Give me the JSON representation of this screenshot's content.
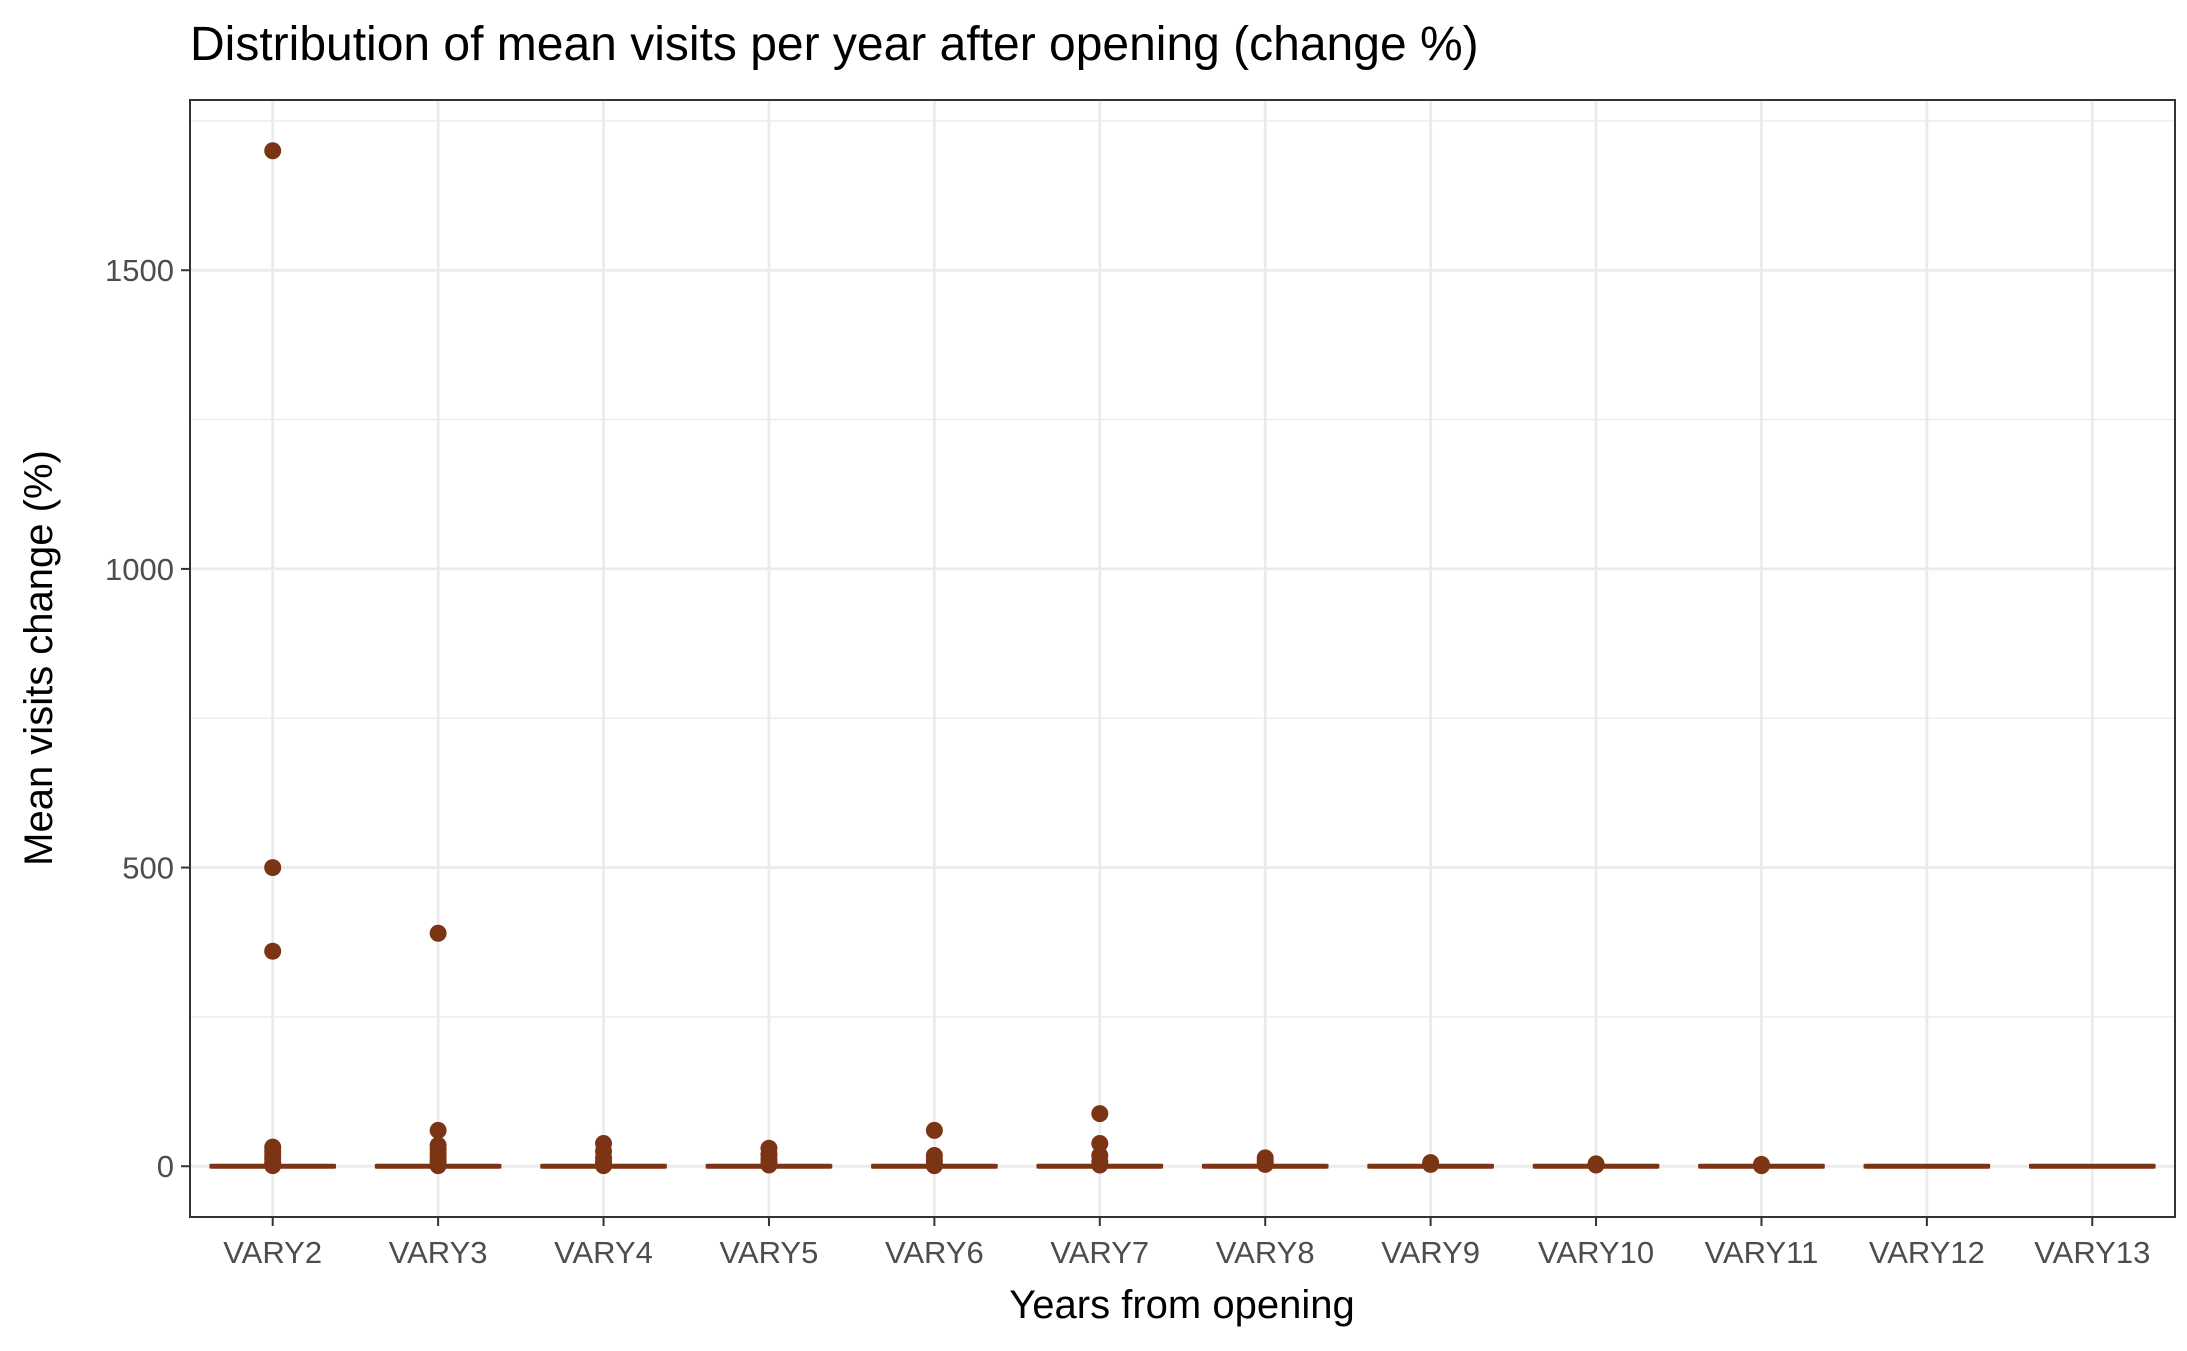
{
  "chart_data": {
    "type": "boxplot",
    "title": "Distribution of mean visits per year after opening (change %)",
    "xlabel": "Years from opening",
    "ylabel": "Mean visits change (%)",
    "categories": [
      "VARY2",
      "VARY3",
      "VARY4",
      "VARY5",
      "VARY6",
      "VARY7",
      "VARY8",
      "VARY9",
      "VARY10",
      "VARY11",
      "VARY12",
      "VARY13"
    ],
    "ylim": [
      -85,
      1785
    ],
    "yticks": [
      0,
      500,
      1000,
      1500
    ],
    "grid": true,
    "legend": "none",
    "series": [
      {
        "boxes": [
          {
            "category": "VARY2",
            "q1": 0,
            "median": 0,
            "q3": 0,
            "whisker_low": 0,
            "whisker_high": 0,
            "outliers": [
              1700,
              500,
              360,
              32,
              25,
              18,
              12,
              6,
              3,
              1
            ]
          },
          {
            "category": "VARY3",
            "q1": 0,
            "median": 0,
            "q3": 0,
            "whisker_low": 0,
            "whisker_high": 0,
            "outliers": [
              390,
              60,
              35,
              28,
              20,
              14,
              8,
              4,
              1
            ]
          },
          {
            "category": "VARY4",
            "q1": 0,
            "median": 0,
            "q3": 0,
            "whisker_low": 0,
            "whisker_high": 0,
            "outliers": [
              38,
              25,
              14,
              7,
              3,
              1
            ]
          },
          {
            "category": "VARY5",
            "q1": 0,
            "median": 0,
            "q3": 0,
            "whisker_low": 0,
            "whisker_high": 0,
            "outliers": [
              30,
              20,
              12,
              6,
              2
            ]
          },
          {
            "category": "VARY6",
            "q1": 0,
            "median": 0,
            "q3": 0,
            "whisker_low": 0,
            "whisker_high": 0,
            "outliers": [
              60,
              18,
              10,
              4,
              1
            ]
          },
          {
            "category": "VARY7",
            "q1": 0,
            "median": 0,
            "q3": 0,
            "whisker_low": 0,
            "whisker_high": 0,
            "outliers": [
              88,
              38,
              18,
              8,
              2
            ]
          },
          {
            "category": "VARY8",
            "q1": 0,
            "median": 0,
            "q3": 0,
            "whisker_low": 0,
            "whisker_high": 0,
            "outliers": [
              14,
              8,
              3
            ]
          },
          {
            "category": "VARY9",
            "q1": 0,
            "median": 0,
            "q3": 0,
            "whisker_low": 0,
            "whisker_high": 0,
            "outliers": [
              6,
              3
            ]
          },
          {
            "category": "VARY10",
            "q1": 0,
            "median": 0,
            "q3": 0,
            "whisker_low": 0,
            "whisker_high": 0,
            "outliers": [
              4,
              2
            ]
          },
          {
            "category": "VARY11",
            "q1": 0,
            "median": 0,
            "q3": 0,
            "whisker_low": 0,
            "whisker_high": 0,
            "outliers": [
              3,
              1
            ]
          },
          {
            "category": "VARY12",
            "q1": 0,
            "median": 0,
            "q3": 0,
            "whisker_low": 0,
            "whisker_high": 0,
            "outliers": []
          },
          {
            "category": "VARY13",
            "q1": 0,
            "median": 0,
            "q3": 0,
            "whisker_low": 0,
            "whisker_high": 0,
            "outliers": []
          }
        ]
      }
    ],
    "colors": {
      "box": "#7b3414",
      "grid": "#ebebeb",
      "panel_border": "#333333",
      "tick_text": "#4d4d4d",
      "text": "#000000"
    }
  }
}
